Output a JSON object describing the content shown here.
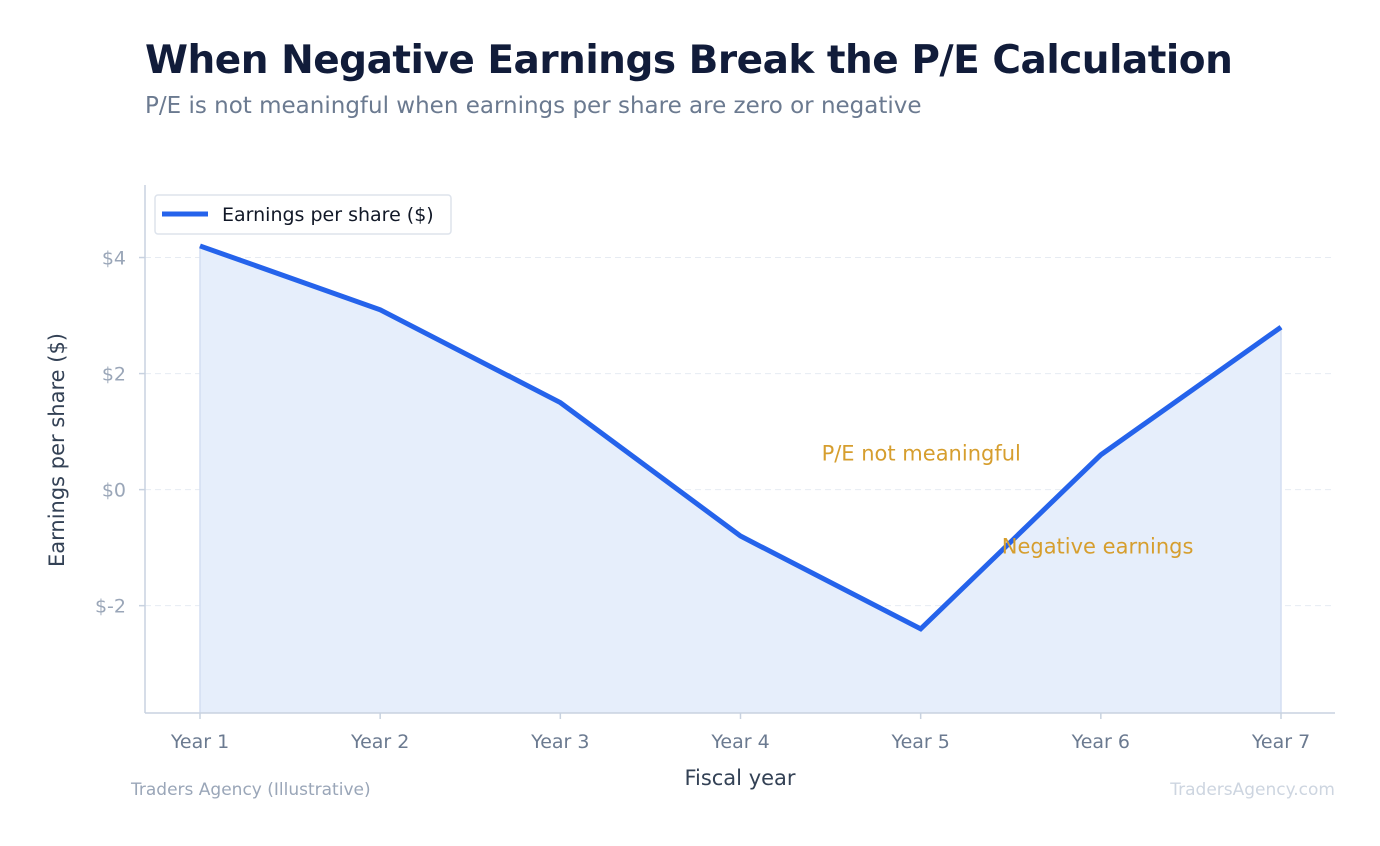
{
  "title": "When Negative Earnings Break the P/E Calculation",
  "subtitle": "P/E is not meaningful when earnings per share are zero or negative",
  "footer": {
    "source": "Traders Agency (Illustrative)",
    "site": "TradersAgency.com"
  },
  "colors": {
    "line": "#2563eb",
    "fill": "#e6eefb",
    "annotation": "#d69e2e"
  },
  "chart_data": {
    "type": "area",
    "categories": [
      "Year 1",
      "Year 2",
      "Year 3",
      "Year 4",
      "Year 5",
      "Year 6",
      "Year 7"
    ],
    "series": [
      {
        "name": "Earnings per share ($)",
        "values": [
          4.2,
          3.1,
          1.5,
          -0.8,
          -2.4,
          0.6,
          2.8
        ]
      }
    ],
    "xlabel": "Fiscal year",
    "ylabel": "Earnings per share ($)",
    "ylim": [
      -3.85,
      5.25
    ],
    "yticks": [
      {
        "value": -2,
        "label": "$-2"
      },
      {
        "value": 0,
        "label": "$0"
      },
      {
        "value": 2,
        "label": "$2"
      },
      {
        "value": 4,
        "label": "$4"
      }
    ],
    "grid": true,
    "legend": "top-left",
    "annotations": [
      {
        "text": "P/E not meaningful",
        "x": 3.45,
        "y": 0.5
      },
      {
        "text": "Negative earnings",
        "x": 4.45,
        "y": -1.1
      }
    ]
  }
}
